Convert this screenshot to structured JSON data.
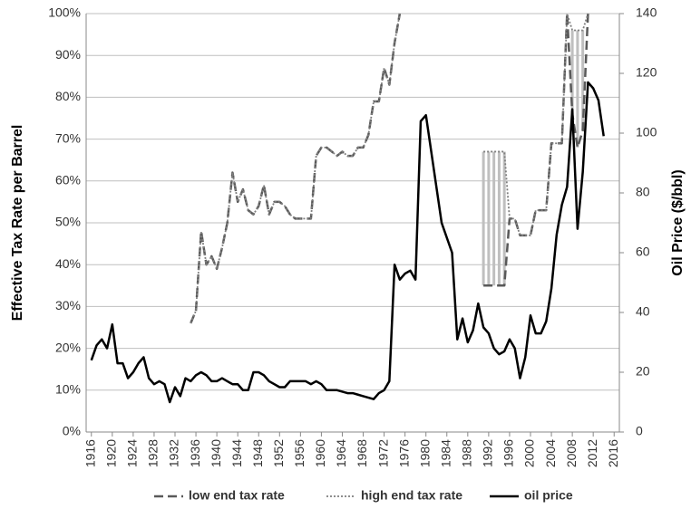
{
  "chart_data": {
    "type": "line",
    "x": [
      1916,
      1917,
      1918,
      1919,
      1920,
      1921,
      1922,
      1923,
      1924,
      1925,
      1926,
      1927,
      1928,
      1929,
      1930,
      1931,
      1932,
      1933,
      1934,
      1935,
      1936,
      1937,
      1938,
      1939,
      1940,
      1941,
      1942,
      1943,
      1944,
      1945,
      1946,
      1947,
      1948,
      1949,
      1950,
      1951,
      1952,
      1953,
      1954,
      1955,
      1956,
      1957,
      1958,
      1959,
      1960,
      1961,
      1962,
      1963,
      1964,
      1965,
      1966,
      1967,
      1968,
      1969,
      1970,
      1971,
      1972,
      1973,
      1974,
      1975,
      1976,
      1977,
      1978,
      1979,
      1980,
      1981,
      1982,
      1983,
      1984,
      1985,
      1986,
      1987,
      1988,
      1989,
      1990,
      1991,
      1992,
      1993,
      1994,
      1995,
      1996,
      1997,
      1998,
      1999,
      2000,
      2001,
      2002,
      2003,
      2004,
      2005,
      2006,
      2007,
      2008,
      2009,
      2010,
      2011,
      2012,
      2013,
      2014
    ],
    "series": [
      {
        "name": "low end tax rate",
        "color": "#595959",
        "line_style": "dashed",
        "values": [
          null,
          null,
          null,
          null,
          null,
          null,
          null,
          null,
          null,
          null,
          null,
          null,
          null,
          null,
          null,
          null,
          null,
          null,
          null,
          26,
          29,
          48,
          40,
          42,
          39,
          44,
          50,
          62,
          55,
          58,
          53,
          52,
          54,
          59,
          52,
          55,
          55,
          54,
          52,
          51,
          51,
          51,
          51,
          66,
          68,
          68,
          67,
          66,
          67,
          66,
          66,
          68,
          68,
          71,
          79,
          79,
          87,
          83,
          93,
          100,
          null,
          null,
          null,
          null,
          null,
          null,
          null,
          null,
          null,
          null,
          null,
          null,
          null,
          null,
          null,
          35,
          35,
          35,
          35,
          35,
          51,
          51,
          47,
          47,
          47,
          53,
          53,
          53,
          69,
          69,
          69,
          100,
          76,
          68,
          72,
          100,
          null,
          null,
          null
        ]
      },
      {
        "name": "high end tax rate",
        "color": "#7f7f7f",
        "line_style": "dotted",
        "values": [
          null,
          null,
          null,
          null,
          null,
          null,
          null,
          null,
          null,
          null,
          null,
          null,
          null,
          null,
          null,
          null,
          null,
          null,
          null,
          26,
          29,
          48,
          40,
          42,
          39,
          44,
          50,
          62,
          55,
          58,
          53,
          52,
          54,
          59,
          52,
          55,
          55,
          54,
          52,
          51,
          51,
          51,
          51,
          66,
          68,
          68,
          67,
          66,
          67,
          66,
          66,
          68,
          68,
          71,
          79,
          79,
          87,
          83,
          93,
          100,
          null,
          null,
          null,
          null,
          null,
          null,
          null,
          null,
          null,
          null,
          null,
          null,
          null,
          null,
          null,
          67,
          67,
          67,
          67,
          67,
          51,
          51,
          47,
          47,
          47,
          53,
          53,
          53,
          69,
          69,
          69,
          100,
          96,
          96,
          96,
          100,
          null,
          null,
          null
        ]
      },
      {
        "name": "oil price",
        "color": "#000000",
        "line_style": "solid",
        "axis": "y2",
        "values": [
          24,
          29,
          31,
          28,
          36,
          23,
          23,
          18,
          20,
          23,
          25,
          18,
          16,
          17,
          16,
          10,
          15,
          12,
          18,
          17,
          19,
          20,
          19,
          17,
          17,
          18,
          17,
          16,
          16,
          14,
          14,
          20,
          20,
          19,
          17,
          16,
          15,
          15,
          17,
          17,
          17,
          17,
          16,
          17,
          16,
          14,
          14,
          14,
          13.5,
          13,
          13,
          12.5,
          12,
          11.5,
          11,
          13,
          14,
          17,
          56,
          51,
          53,
          54,
          51,
          104,
          106,
          94,
          82,
          70,
          65,
          60,
          31,
          38,
          30,
          34,
          43,
          35,
          33,
          28,
          26,
          27,
          31,
          28,
          18,
          25,
          39,
          33,
          33,
          37,
          48,
          66,
          76,
          82,
          108,
          68,
          87,
          117,
          115,
          111,
          99
        ]
      }
    ],
    "range_color": "#bfbfbf",
    "xlim": [
      1915,
      2017
    ],
    "xticks": [
      1916,
      1920,
      1924,
      1928,
      1932,
      1936,
      1940,
      1944,
      1948,
      1952,
      1956,
      1960,
      1964,
      1968,
      1972,
      1976,
      1980,
      1984,
      1988,
      1992,
      1996,
      2000,
      2004,
      2008,
      2012,
      2016
    ],
    "ylim": [
      0,
      100
    ],
    "yticks": [
      {
        "value": 0,
        "label": "0%"
      },
      {
        "value": 10,
        "label": "10%"
      },
      {
        "value": 20,
        "label": "20%"
      },
      {
        "value": 30,
        "label": "30%"
      },
      {
        "value": 40,
        "label": "40%"
      },
      {
        "value": 50,
        "label": "50%"
      },
      {
        "value": 60,
        "label": "60%"
      },
      {
        "value": 70,
        "label": "70%"
      },
      {
        "value": 80,
        "label": "80%"
      },
      {
        "value": 90,
        "label": "90%"
      },
      {
        "value": 100,
        "label": "100%"
      }
    ],
    "y2lim": [
      0,
      140
    ],
    "y2ticks": [
      0,
      20,
      40,
      60,
      80,
      100,
      120,
      140
    ],
    "ylabel": "Effective Tax Rate per Barrel",
    "y2label": "Oil Price ($/bbl)",
    "grid": true,
    "legend": "bottom"
  }
}
